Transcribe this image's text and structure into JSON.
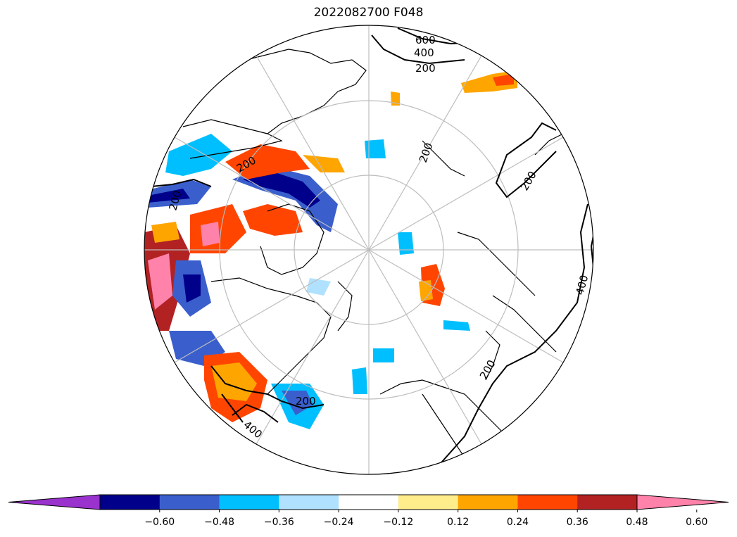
{
  "title": "2022082700 F048",
  "contour_labels": [
    "600",
    "400",
    "200",
    "200",
    "200",
    "400",
    "200",
    "400",
    "200",
    "200",
    "200"
  ],
  "colorbar": {
    "extend": "both",
    "levels": [
      "−0.60",
      "−0.48",
      "−0.36",
      "−0.24",
      "−0.12",
      "0.12",
      "0.24",
      "0.36",
      "0.48",
      "0.60"
    ],
    "colors": [
      "#9a32cd",
      "#00008b",
      "#3a5fcd",
      "#00bfff",
      "#b0e2ff",
      "#ffffff",
      "#ffec8b",
      "#ffa500",
      "#ff4500",
      "#b22222",
      "#ff82ab"
    ]
  }
}
